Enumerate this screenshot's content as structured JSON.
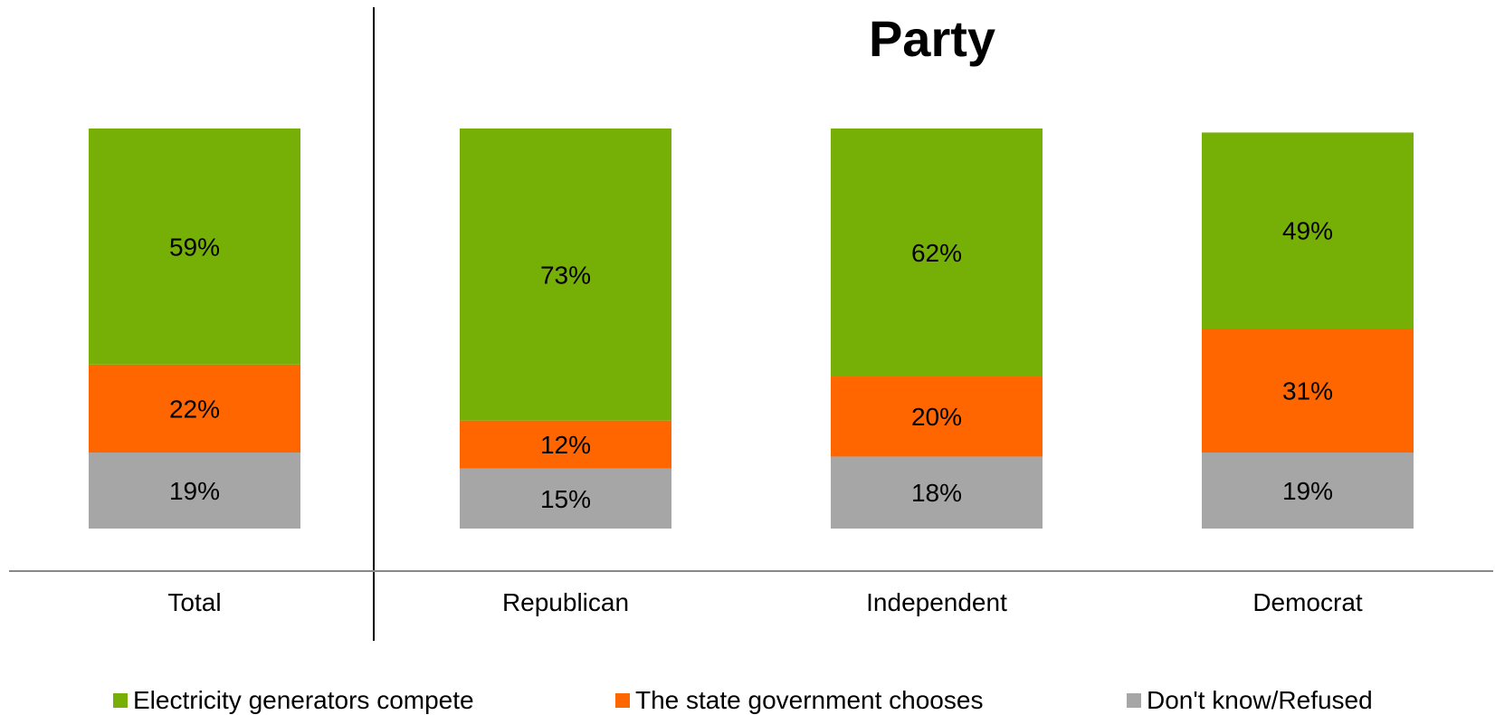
{
  "chart_data": {
    "type": "bar",
    "stacked": true,
    "percent_stacked": true,
    "title": "Party",
    "categories": [
      "Total",
      "Republican",
      "Independent",
      "Democrat"
    ],
    "series": [
      {
        "name": "Electricity generators compete",
        "values": [
          59,
          73,
          62,
          49
        ],
        "color": "#76B007"
      },
      {
        "name": "The state government chooses",
        "values": [
          22,
          12,
          20,
          31
        ],
        "color": "#FF6600"
      },
      {
        "name": "Don't know/Refused",
        "values": [
          19,
          15,
          18,
          19
        ],
        "color": "#A6A6A6"
      }
    ],
    "value_suffix": "%",
    "ylim": [
      0,
      100
    ],
    "grid": false,
    "legend_position": "bottom"
  }
}
